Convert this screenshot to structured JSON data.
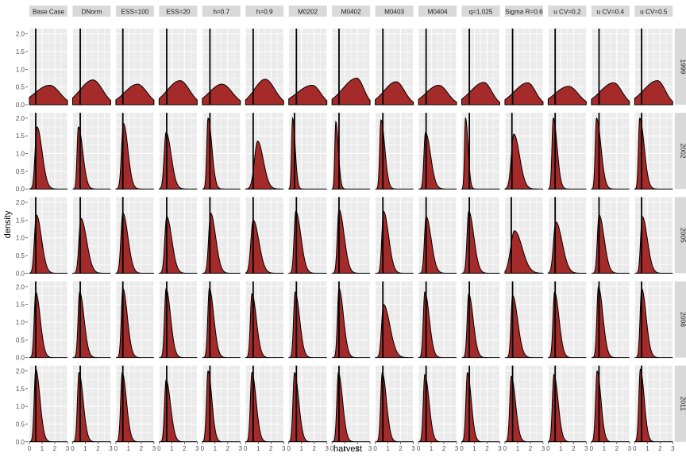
{
  "chart_data": {
    "type": "area",
    "subtype": "faceted-density",
    "xlabel": "harvest",
    "ylabel": "density",
    "xlim": [
      0,
      3
    ],
    "ylim": [
      0,
      2.15
    ],
    "x_ticks": [
      0,
      1,
      2,
      3
    ],
    "y_ticks": [
      0.0,
      0.5,
      1.0,
      1.5,
      2.0
    ],
    "y_tick_labels": [
      "0.0",
      "0.5",
      "1.0",
      "1.5",
      "2.0"
    ],
    "grid": true,
    "fill_color": "#A52A2A",
    "panel_bg": "#EBEBEB",
    "strip_bg": "#D9D9D9",
    "columns": [
      "Base Case",
      "DNorm",
      "ESS=100",
      "ESS=20",
      "h=0.7",
      "h=0.9",
      "M0202",
      "M0402",
      "M0403",
      "M0404",
      "q=1.025",
      "Sigma R=0.6",
      "u CV=0.2",
      "u CV=0.4",
      "u CV=0.5"
    ],
    "rows": [
      "1999",
      "2002",
      "2005",
      "2008",
      "2011"
    ],
    "reference_x": [
      [
        0.5,
        0.6,
        0.55,
        0.6,
        0.6,
        0.6,
        0.6,
        0.55,
        0.6,
        0.6,
        0.6,
        0.6,
        0.55,
        0.6,
        0.55
      ],
      [
        0.5,
        0.6,
        0.55,
        0.6,
        0.6,
        0.6,
        0.45,
        0.55,
        0.6,
        0.6,
        0.6,
        0.55,
        0.55,
        0.6,
        0.55
      ],
      [
        0.5,
        0.6,
        0.55,
        0.6,
        0.6,
        0.6,
        0.6,
        0.55,
        0.6,
        0.6,
        0.6,
        0.5,
        0.55,
        0.6,
        0.55
      ],
      [
        0.5,
        0.6,
        0.55,
        0.6,
        0.6,
        0.6,
        0.6,
        0.55,
        0.6,
        0.6,
        0.6,
        0.6,
        0.55,
        0.6,
        0.55
      ],
      [
        0.5,
        0.6,
        0.55,
        0.6,
        0.6,
        0.6,
        0.6,
        0.55,
        0.6,
        0.6,
        0.6,
        0.6,
        0.55,
        0.6,
        0.55
      ]
    ],
    "density_shape": {
      "mode_x": [
        [
          1.6,
          1.6,
          1.7,
          1.65,
          1.55,
          1.55,
          1.85,
          1.95,
          1.65,
          1.6,
          1.75,
          1.8,
          1.6,
          1.75,
          1.8
        ],
        [
          0.6,
          0.45,
          0.6,
          0.55,
          0.45,
          0.95,
          0.3,
          0.3,
          0.45,
          0.55,
          0.3,
          0.7,
          0.4,
          0.4,
          0.4
        ],
        [
          0.55,
          0.65,
          0.55,
          0.6,
          0.65,
          0.6,
          0.55,
          0.55,
          0.65,
          0.6,
          0.55,
          0.75,
          0.6,
          0.6,
          0.6
        ],
        [
          0.5,
          0.55,
          0.55,
          0.55,
          0.55,
          0.5,
          0.5,
          0.55,
          0.65,
          0.5,
          0.55,
          0.6,
          0.5,
          0.55,
          0.55
        ],
        [
          0.5,
          0.5,
          0.5,
          0.55,
          0.45,
          0.5,
          0.45,
          0.5,
          0.55,
          0.5,
          0.45,
          0.5,
          0.45,
          0.45,
          0.45
        ]
      ],
      "peak_y": [
        [
          0.55,
          0.7,
          0.58,
          0.68,
          0.58,
          0.72,
          0.55,
          0.75,
          0.65,
          0.55,
          0.63,
          0.62,
          0.52,
          0.62,
          0.68
        ],
        [
          1.75,
          1.75,
          1.85,
          1.6,
          2.0,
          1.35,
          2.0,
          1.9,
          1.95,
          1.6,
          2.0,
          1.55,
          2.0,
          2.0,
          2.0
        ],
        [
          1.65,
          1.55,
          1.7,
          1.6,
          1.7,
          1.5,
          1.75,
          1.8,
          1.75,
          1.6,
          1.75,
          1.2,
          1.45,
          1.65,
          1.6
        ],
        [
          1.85,
          1.85,
          1.95,
          1.95,
          1.95,
          1.8,
          1.85,
          1.95,
          1.5,
          1.85,
          1.8,
          1.75,
          1.85,
          2.0,
          1.95
        ],
        [
          2.05,
          1.95,
          1.95,
          1.75,
          2.0,
          1.95,
          1.95,
          1.95,
          1.95,
          1.9,
          1.95,
          1.85,
          1.9,
          2.0,
          2.05
        ]
      ],
      "left_width": [
        [
          1.15,
          1.0,
          1.0,
          1.0,
          1.0,
          0.85,
          1.2,
          1.1,
          0.95,
          1.0,
          1.05,
          1.05,
          1.05,
          1.05,
          1.1
        ],
        [
          0.15,
          0.1,
          0.15,
          0.15,
          0.1,
          0.25,
          0.08,
          0.08,
          0.1,
          0.12,
          0.08,
          0.2,
          0.1,
          0.1,
          0.1
        ],
        [
          0.15,
          0.15,
          0.15,
          0.15,
          0.15,
          0.18,
          0.13,
          0.13,
          0.13,
          0.13,
          0.13,
          0.3,
          0.18,
          0.13,
          0.13
        ],
        [
          0.12,
          0.12,
          0.12,
          0.12,
          0.12,
          0.12,
          0.12,
          0.12,
          0.15,
          0.12,
          0.12,
          0.12,
          0.12,
          0.12,
          0.12
        ],
        [
          0.12,
          0.12,
          0.12,
          0.12,
          0.12,
          0.12,
          0.12,
          0.12,
          0.12,
          0.12,
          0.12,
          0.12,
          0.12,
          0.12,
          0.12
        ]
      ],
      "right_width": [
        [
          0.8,
          0.75,
          0.75,
          0.75,
          0.8,
          0.75,
          0.65,
          0.55,
          0.65,
          0.7,
          0.6,
          0.6,
          0.75,
          0.65,
          0.6
        ],
        [
          0.4,
          0.35,
          0.35,
          0.4,
          0.3,
          0.45,
          0.2,
          0.2,
          0.3,
          0.4,
          0.2,
          0.45,
          0.3,
          0.35,
          0.35
        ],
        [
          0.4,
          0.45,
          0.4,
          0.4,
          0.4,
          0.45,
          0.4,
          0.4,
          0.4,
          0.4,
          0.4,
          0.6,
          0.5,
          0.4,
          0.4
        ],
        [
          0.35,
          0.35,
          0.35,
          0.35,
          0.35,
          0.35,
          0.35,
          0.35,
          0.5,
          0.35,
          0.35,
          0.4,
          0.35,
          0.35,
          0.35
        ],
        [
          0.33,
          0.33,
          0.33,
          0.35,
          0.3,
          0.33,
          0.33,
          0.33,
          0.33,
          0.33,
          0.3,
          0.33,
          0.33,
          0.3,
          0.3
        ]
      ]
    }
  }
}
